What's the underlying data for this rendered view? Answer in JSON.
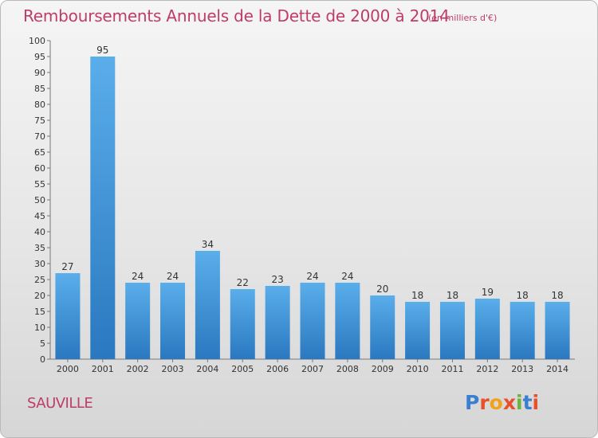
{
  "header": {
    "title": "Remboursements Annuels de la Dette de 2000 à 2014",
    "unit": "(en milliers d'€)"
  },
  "footer": {
    "commune": "SAUVILLE",
    "logo": "Proxiti",
    "logo_colors": [
      "#3a7fd0",
      "#e8502a",
      "#f2a21a",
      "#e8502a",
      "#6bb33a",
      "#3a7fd0",
      "#e8502a"
    ]
  },
  "chart_data": {
    "type": "bar",
    "categories": [
      "2000",
      "2001",
      "2002",
      "2003",
      "2004",
      "2005",
      "2006",
      "2007",
      "2008",
      "2009",
      "2010",
      "2011",
      "2012",
      "2013",
      "2014"
    ],
    "values": [
      27,
      95,
      24,
      24,
      34,
      22,
      23,
      24,
      24,
      20,
      18,
      18,
      19,
      18,
      18
    ],
    "title": "Remboursements Annuels de la Dette de 2000 à 2014",
    "xlabel": "",
    "ylabel": "",
    "ylim": [
      0,
      100
    ],
    "yticks": [
      0,
      5,
      10,
      15,
      20,
      25,
      30,
      35,
      40,
      45,
      50,
      55,
      60,
      65,
      70,
      75,
      80,
      85,
      90,
      95,
      100
    ],
    "grid": false,
    "bar_color_top": "#5aaeea",
    "bar_color_bottom": "#2a78c0"
  }
}
